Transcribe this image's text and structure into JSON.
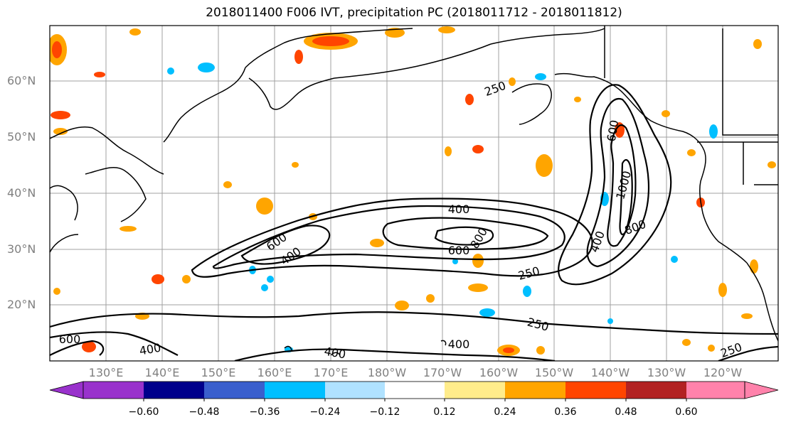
{
  "title": "2018011400 F006 IVT, precipitation PC (2018011712 - 2018011812)",
  "lat_labels": [
    "60°N",
    "50°N",
    "40°N",
    "30°N",
    "20°N"
  ],
  "lon_labels": [
    "130°E",
    "140°E",
    "150°E",
    "160°E",
    "170°E",
    "180°W",
    "170°W",
    "160°W",
    "150°W",
    "140°W",
    "130°W",
    "120°W"
  ],
  "contour_labels": {
    "c1": "250",
    "c2": "400",
    "c3": "600",
    "c4": "600",
    "c5": "400",
    "c6": "600",
    "c7": "800",
    "c8": "250",
    "c9": "400",
    "c10": "600",
    "c11": "800",
    "c12": "1000",
    "c13": "800",
    "c14": "400",
    "c15": "250",
    "c16": "400",
    "c17": "400",
    "c18": "400",
    "c19": "250",
    "c20": "600"
  },
  "colorbar": {
    "colors": [
      "#9932cc",
      "#00008b",
      "#3a5fcd",
      "#00bfff",
      "#b0e2ff",
      "#ffffff",
      "#ffec8b",
      "#ffa500",
      "#ff4500",
      "#b22222",
      "#ff82ab"
    ],
    "tick_labels": [
      "−0.60",
      "−0.48",
      "−0.36",
      "−0.24",
      "−0.12",
      "0.12",
      "0.24",
      "0.36",
      "0.48",
      "0.60"
    ]
  },
  "colors": {
    "grid": "#a0a0a0",
    "contour": "#000000",
    "label_gray": "#808080"
  }
}
